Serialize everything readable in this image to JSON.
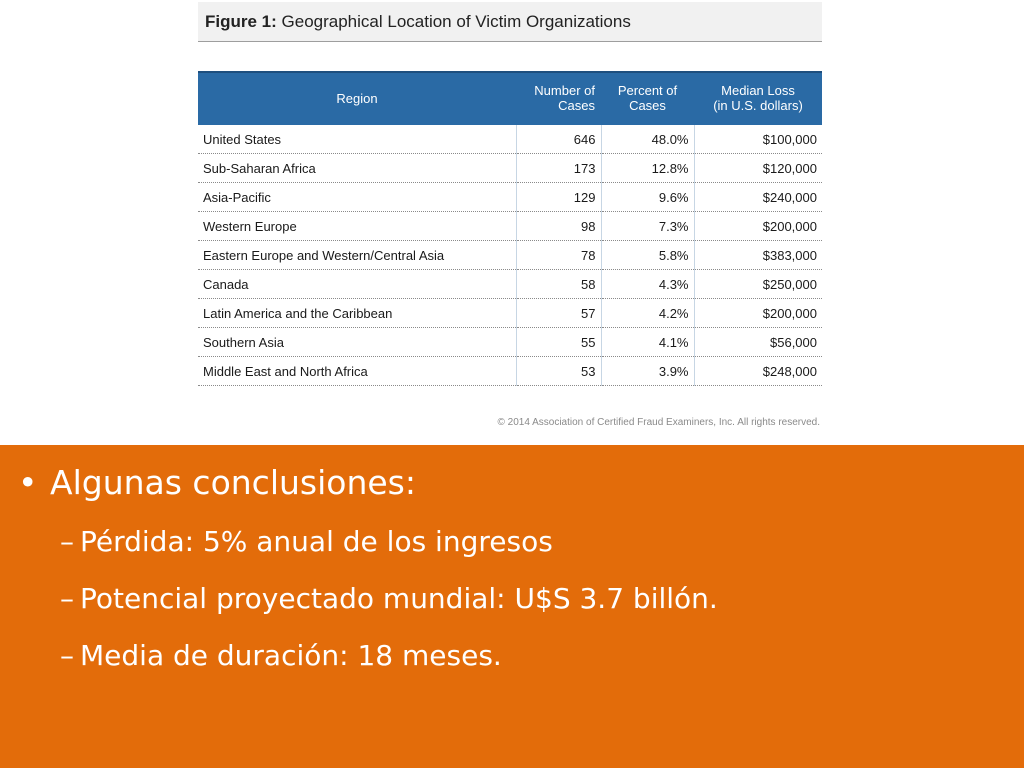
{
  "figure": {
    "title_prefix": "Figure 1:",
    "title_text": " Geographical Location of Victim Organizations",
    "columns": {
      "region": "Region",
      "cases": "Number of Cases",
      "percent": "Percent of Cases",
      "median_line1": "Median Loss",
      "median_line2": "(in U.S. dollars)"
    },
    "rows": [
      {
        "region": "United States",
        "cases": "646",
        "percent": "48.0%",
        "median": "$100,000"
      },
      {
        "region": "Sub-Saharan Africa",
        "cases": "173",
        "percent": "12.8%",
        "median": "$120,000"
      },
      {
        "region": "Asia-Pacific",
        "cases": "129",
        "percent": "9.6%",
        "median": "$240,000"
      },
      {
        "region": "Western Europe",
        "cases": "98",
        "percent": "7.3%",
        "median": "$200,000"
      },
      {
        "region": "Eastern Europe and Western/Central Asia",
        "cases": "78",
        "percent": "5.8%",
        "median": "$383,000"
      },
      {
        "region": "Canada",
        "cases": "58",
        "percent": "4.3%",
        "median": "$250,000"
      },
      {
        "region": "Latin America and the Caribbean",
        "cases": "57",
        "percent": "4.2%",
        "median": "$200,000"
      },
      {
        "region": "Southern Asia",
        "cases": "55",
        "percent": "4.1%",
        "median": "$56,000"
      },
      {
        "region": "Middle East and North Africa",
        "cases": "53",
        "percent": "3.9%",
        "median": "$248,000"
      }
    ],
    "copyright": "© 2014 Association of Certified Fraud Examiners, Inc. All rights reserved."
  },
  "slide": {
    "bullet_symbol": "•",
    "dash_symbol": "–",
    "heading": "Algunas conclusiones:",
    "items": [
      "Pérdida: 5% anual de los ingresos",
      "Potencial proyectado mundial: U$S 3.7 billón.",
      "Media de duración: 18 meses."
    ]
  },
  "colors": {
    "accent_orange": "#e36c0a",
    "table_header_blue": "#2a6aa5"
  }
}
